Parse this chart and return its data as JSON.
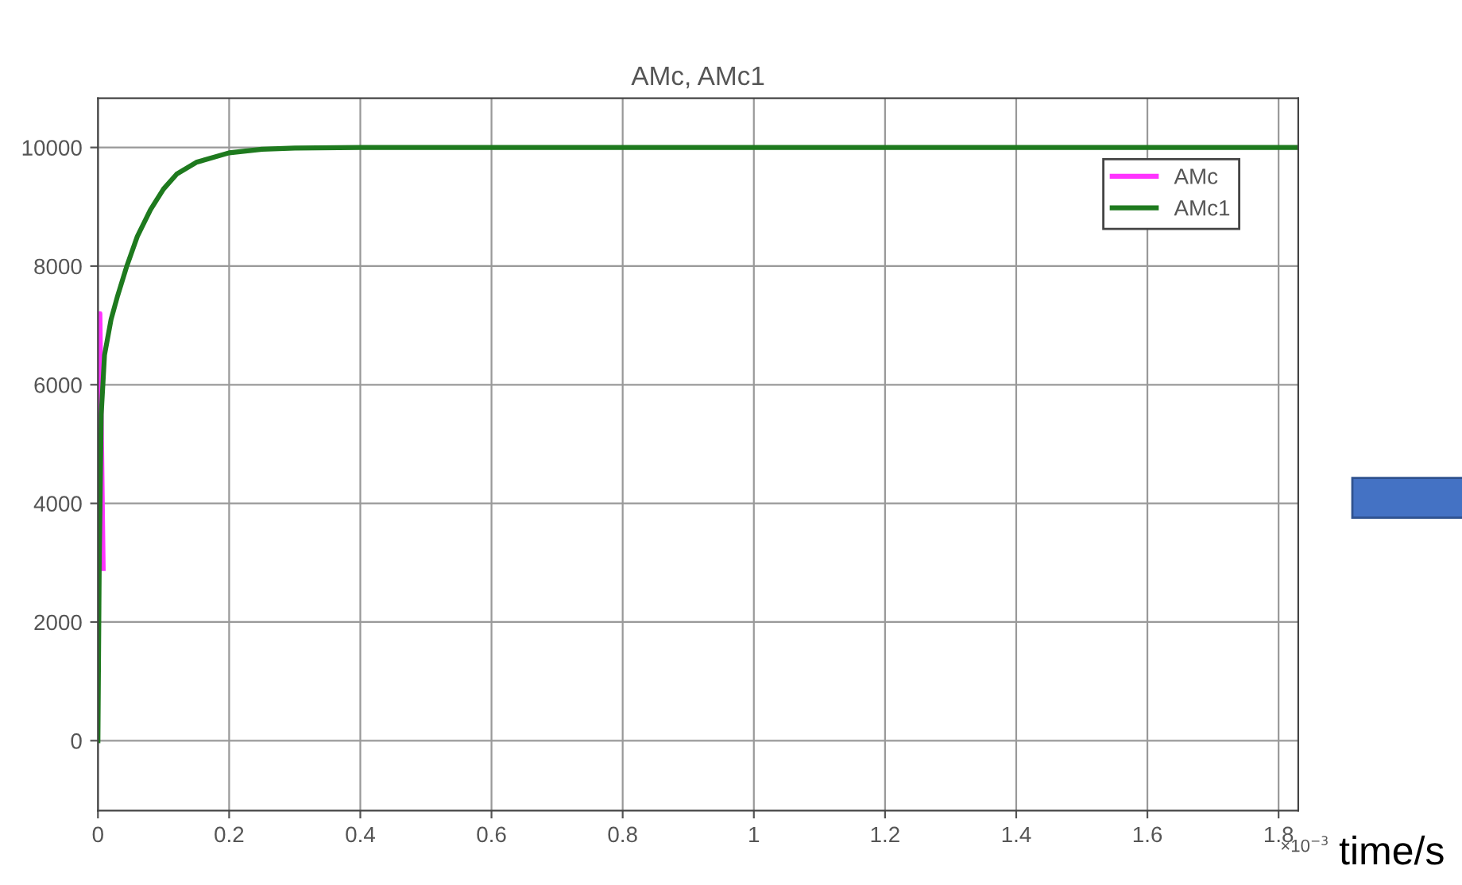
{
  "chart_data": {
    "type": "line",
    "title": "AMc, AMc1",
    "xlabel": "time/s",
    "annotations": [
      "×10$^{−3}$"
    ],
    "series": [
      {
        "name": "AMc",
        "color": "#ff33ff",
        "x": [
          0.002,
          0.003,
          0.008
        ],
        "values": [
          5000,
          7200,
          2900
        ]
      },
      {
        "name": "AMc1",
        "color": "#1e7a1e",
        "x": [
          0,
          0.002,
          0.005,
          0.01,
          0.02,
          0.03,
          0.044,
          0.06,
          0.08,
          0.1,
          0.12,
          0.15,
          0.2,
          0.25,
          0.3,
          0.4,
          1.0,
          1.83
        ],
        "values": [
          0,
          3000,
          5500,
          6500,
          7100,
          7500,
          8000,
          8500,
          8950,
          9300,
          9550,
          9750,
          9910,
          9970,
          9990,
          10000,
          10000,
          10000
        ]
      }
    ],
    "xlim": [
      0,
      1.83
    ],
    "xticks": [
      0,
      0.2,
      0.4,
      0.6,
      0.8,
      1,
      1.2,
      1.4,
      1.6,
      1.8
    ],
    "ylim": [
      -1180,
      10830
    ],
    "yticks": [
      0,
      2000,
      4000,
      6000,
      8000,
      10000
    ],
    "grid": true,
    "legend": "top right",
    "marker": "none",
    "line_style": "solid"
  }
}
